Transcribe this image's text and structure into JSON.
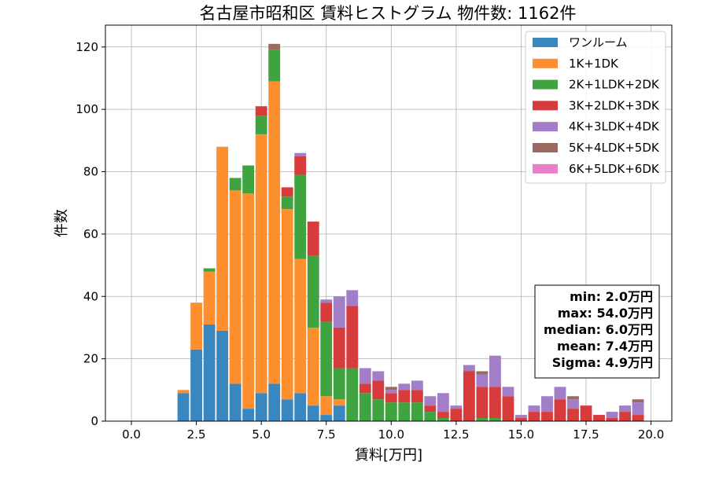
{
  "chart_data": {
    "type": "bar",
    "stacked": true,
    "title": "名古屋市昭和区 賃料ヒストグラム 物件数: 1162件",
    "xlabel": "賃料[万円]",
    "ylabel": "件数",
    "xlim": [
      -1.0,
      20.8
    ],
    "ylim": [
      0,
      127
    ],
    "bin_width": 0.5,
    "grid": true,
    "legend_position": "top-right",
    "x_ticks": [
      "0.0",
      "2.5",
      "5.0",
      "7.5",
      "10.0",
      "12.5",
      "15.0",
      "17.5",
      "20.0"
    ],
    "y_ticks": [
      "0",
      "20",
      "40",
      "60",
      "80",
      "100",
      "120"
    ],
    "x": [
      2.0,
      2.5,
      3.0,
      3.5,
      4.0,
      4.5,
      5.0,
      5.5,
      6.0,
      6.5,
      7.0,
      7.5,
      8.0,
      8.5,
      9.0,
      9.5,
      10.0,
      10.5,
      11.0,
      11.5,
      12.0,
      12.5,
      13.0,
      13.5,
      14.0,
      14.5,
      15.0,
      15.5,
      16.0,
      16.5,
      17.0,
      17.5,
      18.0,
      18.5,
      19.0,
      19.5
    ],
    "series": [
      {
        "name": "ワンルーム",
        "color": "#3a87bf",
        "values": [
          9,
          23,
          31,
          29,
          12,
          4,
          9,
          12,
          7,
          9,
          5,
          2,
          5,
          0,
          0,
          0,
          0,
          0,
          0,
          0,
          0,
          0,
          0,
          0,
          0,
          0,
          0,
          0,
          0,
          0,
          0,
          0,
          0,
          0,
          0,
          0
        ]
      },
      {
        "name": "1K+1DK",
        "color": "#fd8f2f",
        "values": [
          1,
          15,
          17,
          59,
          62,
          69,
          83,
          97,
          61,
          43,
          25,
          6,
          2,
          0,
          0,
          0,
          0,
          0,
          0,
          0,
          0,
          0,
          0,
          0,
          0,
          0,
          0,
          0,
          0,
          0,
          0,
          0,
          0,
          0,
          0,
          0
        ]
      },
      {
        "name": "2K+1LDK+2DK",
        "color": "#3fa43f",
        "values": [
          0,
          0,
          1,
          0,
          4,
          9,
          6,
          10,
          4,
          27,
          23,
          24,
          10,
          17,
          9,
          7,
          6,
          6,
          6,
          3,
          1,
          0,
          0,
          1,
          1,
          0,
          0,
          0,
          0,
          0,
          0,
          0,
          0,
          0,
          0,
          0
        ]
      },
      {
        "name": "3K+2LDK+3DK",
        "color": "#d83b3b",
        "values": [
          0,
          0,
          0,
          0,
          0,
          0,
          3,
          0,
          3,
          6,
          11,
          6,
          13,
          20,
          3,
          6,
          3,
          4,
          4,
          2,
          2,
          4,
          16,
          10,
          10,
          8,
          1,
          3,
          3,
          7,
          4,
          5,
          2,
          1,
          3,
          2
        ]
      },
      {
        "name": "4K+3LDK+4DK",
        "color": "#a27dc8",
        "values": [
          0,
          0,
          0,
          0,
          0,
          0,
          0,
          0,
          0,
          1,
          0,
          1,
          10,
          5,
          5,
          3,
          1,
          2,
          3,
          3,
          6,
          1,
          2,
          4,
          10,
          3,
          1,
          2,
          5,
          4,
          3,
          0,
          0,
          2,
          2,
          4
        ]
      },
      {
        "name": "5K+4LDK+5DK",
        "color": "#9b6b5f",
        "values": [
          0,
          0,
          0,
          0,
          0,
          0,
          0,
          2,
          0,
          0,
          0,
          0,
          0,
          0,
          0,
          0,
          1,
          0,
          0,
          0,
          0,
          0,
          0,
          1,
          0,
          0,
          0,
          0,
          0,
          0,
          1,
          0,
          0,
          0,
          0,
          1
        ]
      },
      {
        "name": "6K+5LDK+6DK",
        "color": "#e87fc9",
        "values": [
          0,
          0,
          0,
          0,
          0,
          0,
          0,
          0,
          0,
          0,
          0,
          0,
          0,
          0,
          0,
          0,
          0,
          0,
          0,
          0,
          0,
          0,
          0,
          0,
          0,
          0,
          0,
          0,
          0,
          0,
          0,
          0,
          0,
          0,
          0,
          0
        ]
      }
    ],
    "stats": [
      "min: 2.0万円",
      "max: 54.0万円",
      "median: 6.0万円",
      "mean: 7.4万円",
      "Sigma: 4.9万円"
    ]
  }
}
